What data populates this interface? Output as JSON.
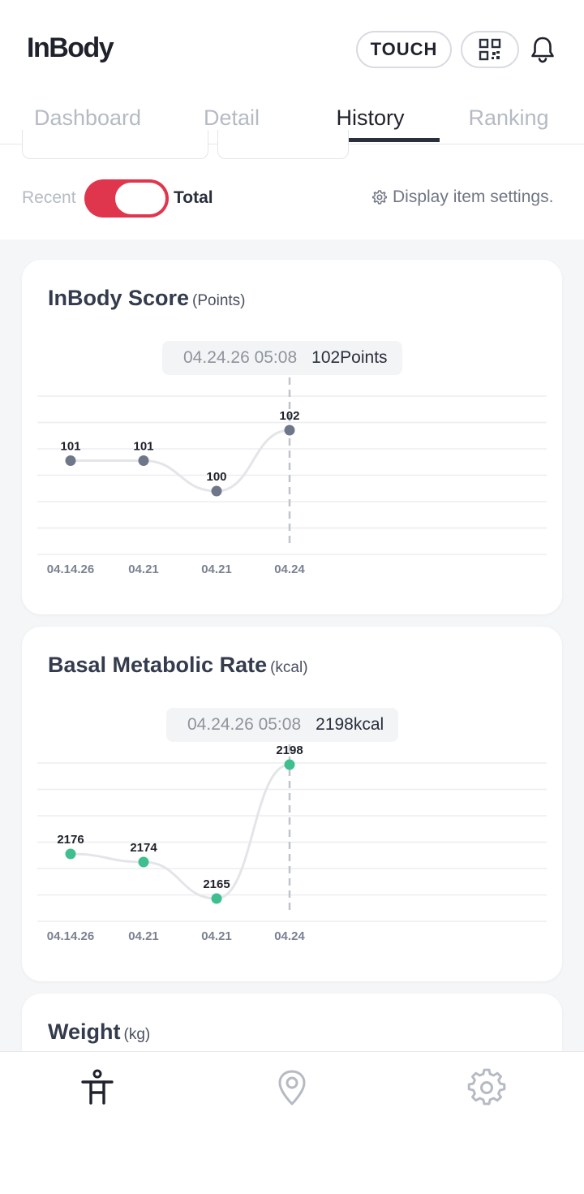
{
  "header": {
    "logo": "InBody",
    "touch_label": "TOUCH"
  },
  "tabs": [
    {
      "label": "Dashboard",
      "active": false
    },
    {
      "label": "Detail",
      "active": false
    },
    {
      "label": "History",
      "active": true
    },
    {
      "label": "Ranking",
      "active": false
    }
  ],
  "toggle": {
    "left_label": "Recent",
    "right_label": "Total",
    "state": "Total"
  },
  "display_settings_label": "Display item settings.",
  "colors": {
    "accent": "#e0364d",
    "score_point": "#6e7789",
    "bmr_point": "#3fbf8f"
  },
  "cards": [
    {
      "title": "InBody Score",
      "unit": "(Points)",
      "tooltip_date": "04.24.26 05:08",
      "tooltip_value": "102Points"
    },
    {
      "title": "Basal Metabolic Rate",
      "unit": "(kcal)",
      "tooltip_date": "04.24.26 05:08",
      "tooltip_value": "2198kcal"
    },
    {
      "title": "Weight",
      "unit": "(kg)"
    }
  ],
  "chart_data": [
    {
      "type": "line",
      "categories": [
        "04.14.26",
        "04.21",
        "04.21",
        "04.24"
      ],
      "values": [
        101,
        101,
        100,
        102
      ],
      "value_labels": [
        "101",
        "101",
        "100",
        "102"
      ],
      "selected_index": 3,
      "ylim": [
        98,
        104
      ],
      "point_color": "#6e7789"
    },
    {
      "type": "line",
      "categories": [
        "04.14.26",
        "04.21",
        "04.21",
        "04.24"
      ],
      "values": [
        2176,
        2174,
        2165,
        2198
      ],
      "value_labels": [
        "2176",
        "2174",
        "2165",
        "2198"
      ],
      "selected_index": 3,
      "ylim": [
        2160,
        2205
      ],
      "point_color": "#3fbf8f"
    }
  ],
  "bottom_nav": [
    {
      "icon": "body-icon",
      "active": true
    },
    {
      "icon": "location-pin-icon",
      "active": false
    },
    {
      "icon": "gear-icon",
      "active": false
    }
  ]
}
